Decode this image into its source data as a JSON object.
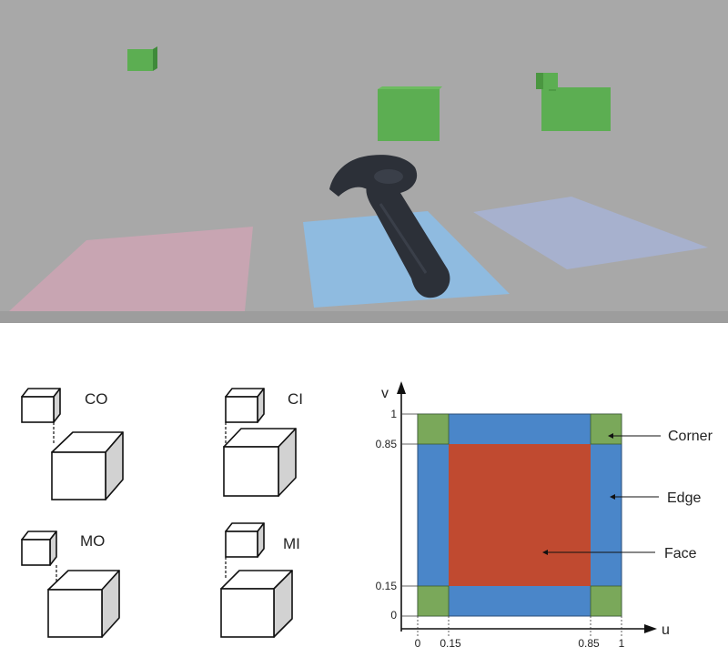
{
  "cube_conditions": [
    {
      "label": "CO"
    },
    {
      "label": "CI"
    },
    {
      "label": "MO"
    },
    {
      "label": "MI"
    }
  ],
  "uv_diagram": {
    "u_axis_label": "u",
    "v_axis_label": "v",
    "u_ticks": [
      "0",
      "0.15",
      "0.85",
      "1"
    ],
    "v_ticks": [
      "1",
      "0.85",
      "0.15",
      "0"
    ],
    "regions": [
      {
        "label": "Corner",
        "color": "#7aa85a"
      },
      {
        "label": "Edge",
        "color": "#4a86c9"
      },
      {
        "label": "Face",
        "color": "#c04a30"
      }
    ]
  },
  "scene_colors": {
    "background": "#a8a8a8",
    "cube": "#5cae52",
    "pad_left": "#cfa3b2",
    "pad_center": "#8fbbe0",
    "pad_right": "#a9b2cf",
    "controller": "#2c3038"
  }
}
